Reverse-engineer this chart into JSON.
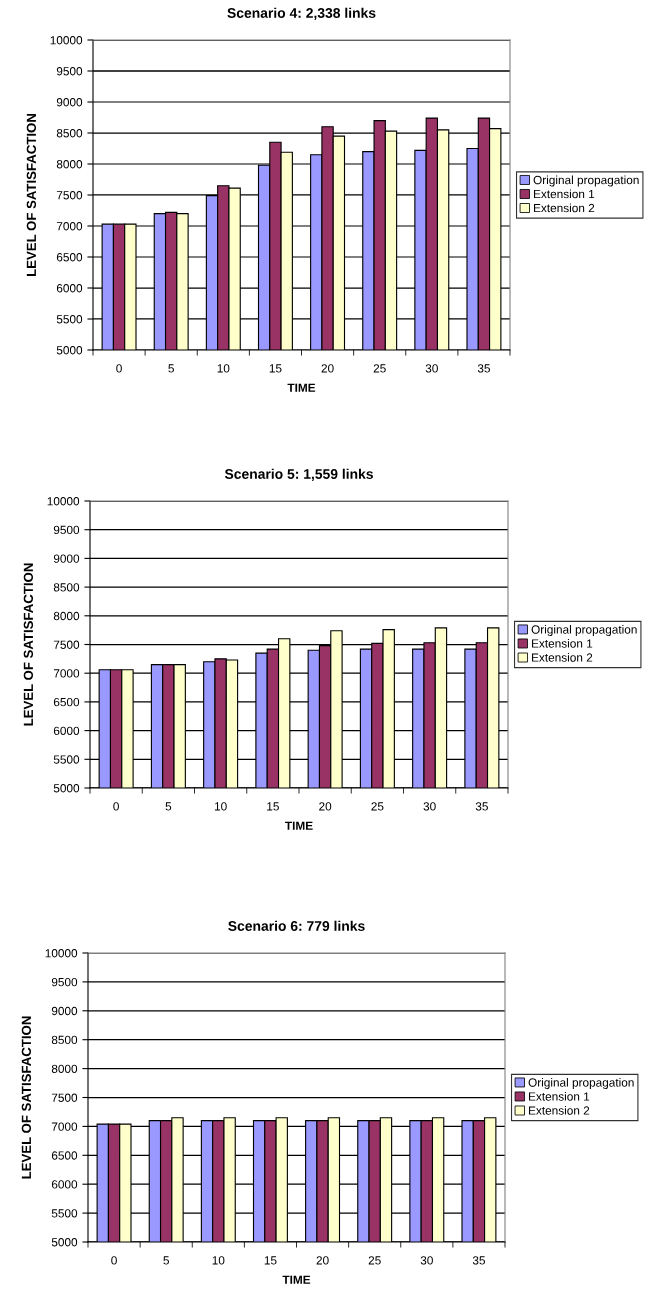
{
  "chart_data": [
    {
      "type": "bar",
      "title": "Scenario 4: 2,338 links",
      "xlabel": "TIME",
      "ylabel": "LEVEL OF SATISFACTION",
      "categories": [
        "0",
        "5",
        "10",
        "15",
        "20",
        "25",
        "30",
        "35"
      ],
      "ylim": [
        5000,
        10000
      ],
      "yticks": [
        5000,
        5500,
        6000,
        6500,
        7000,
        7500,
        8000,
        8500,
        9000,
        9500,
        10000
      ],
      "grid": "y",
      "legend": "right",
      "series": [
        {
          "name": "Original propagation",
          "color": "#9999ff",
          "values": [
            7030,
            7200,
            7490,
            7980,
            8150,
            8200,
            8220,
            8250
          ]
        },
        {
          "name": "Extension 1",
          "color": "#993366",
          "values": [
            7030,
            7220,
            7650,
            8350,
            8600,
            8700,
            8740,
            8740
          ]
        },
        {
          "name": "Extension 2",
          "color": "#ffffcc",
          "values": [
            7030,
            7200,
            7610,
            8190,
            8450,
            8530,
            8550,
            8570
          ]
        }
      ]
    },
    {
      "type": "bar",
      "title": "Scenario 5: 1,559 links",
      "xlabel": "TIME",
      "ylabel": "LEVEL OF SATISFACTION",
      "categories": [
        "0",
        "5",
        "10",
        "15",
        "20",
        "25",
        "30",
        "35"
      ],
      "ylim": [
        5000,
        10000
      ],
      "yticks": [
        5000,
        5500,
        6000,
        6500,
        7000,
        7500,
        8000,
        8500,
        9000,
        9500,
        10000
      ],
      "grid": "y",
      "legend": "right",
      "series": [
        {
          "name": "Original propagation",
          "color": "#9999ff",
          "values": [
            7060,
            7150,
            7200,
            7350,
            7400,
            7420,
            7420,
            7420
          ]
        },
        {
          "name": "Extension 1",
          "color": "#993366",
          "values": [
            7060,
            7150,
            7250,
            7420,
            7480,
            7520,
            7530,
            7530
          ]
        },
        {
          "name": "Extension 2",
          "color": "#ffffcc",
          "values": [
            7060,
            7150,
            7230,
            7600,
            7740,
            7760,
            7790,
            7790
          ]
        }
      ]
    },
    {
      "type": "bar",
      "title": "Scenario 6: 779 links",
      "xlabel": "TIME",
      "ylabel": "LEVEL OF SATISFACTION",
      "categories": [
        "0",
        "5",
        "10",
        "15",
        "20",
        "25",
        "30",
        "35"
      ],
      "ylim": [
        5000,
        10000
      ],
      "yticks": [
        5000,
        5500,
        6000,
        6500,
        7000,
        7500,
        8000,
        8500,
        9000,
        9500,
        10000
      ],
      "grid": "y",
      "legend": "right",
      "series": [
        {
          "name": "Original propagation",
          "color": "#9999ff",
          "values": [
            7040,
            7100,
            7100,
            7100,
            7100,
            7100,
            7100,
            7100
          ]
        },
        {
          "name": "Extension 1",
          "color": "#993366",
          "values": [
            7040,
            7100,
            7100,
            7100,
            7100,
            7100,
            7100,
            7100
          ]
        },
        {
          "name": "Extension 2",
          "color": "#ffffcc",
          "values": [
            7040,
            7150,
            7150,
            7150,
            7150,
            7150,
            7150,
            7150
          ]
        }
      ]
    }
  ]
}
